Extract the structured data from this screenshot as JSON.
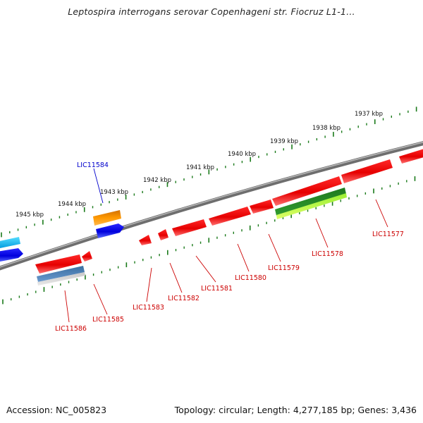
{
  "title": "Leptospira interrogans serovar Copenhageni str. Fiocruz L1-1…",
  "footer": {
    "accession": "Accession: NC_005823",
    "topology": "Topology: circular; Length: 4,277,185 bp; Genes: 3,436"
  },
  "scale_labels": [
    "1937 kbp",
    "1938 kbp",
    "1939 kbp",
    "1940 kbp",
    "1941 kbp",
    "1942 kbp",
    "1943 kbp",
    "1944 kbp",
    "1945 kbp"
  ],
  "genes": [
    {
      "name": "LIC11577",
      "strand": "minus",
      "color": "#dd0000"
    },
    {
      "name": "LIC11578",
      "strand": "minus",
      "color": "#dd0000"
    },
    {
      "name": "LIC11579",
      "strand": "minus",
      "color": "#dd0000"
    },
    {
      "name": "LIC11580",
      "strand": "minus",
      "color": "#dd0000"
    },
    {
      "name": "LIC11581",
      "strand": "minus",
      "color": "#dd0000"
    },
    {
      "name": "LIC11582",
      "strand": "minus",
      "color": "#dd0000"
    },
    {
      "name": "LIC11583",
      "strand": "minus",
      "color": "#dd0000"
    },
    {
      "name": "LIC11584",
      "strand": "plus",
      "color": "#0000cc"
    },
    {
      "name": "LIC11585",
      "strand": "minus",
      "color": "#dd0000"
    },
    {
      "name": "LIC11586",
      "strand": "minus",
      "color": "#dd0000"
    }
  ],
  "colors": {
    "backbone": "#808080",
    "tick": "#1a7a1a",
    "minus_gene": "#ee0000",
    "plus_gene": "#0000ee",
    "label_minus": "#cc0000",
    "label_plus": "#0000cc"
  }
}
